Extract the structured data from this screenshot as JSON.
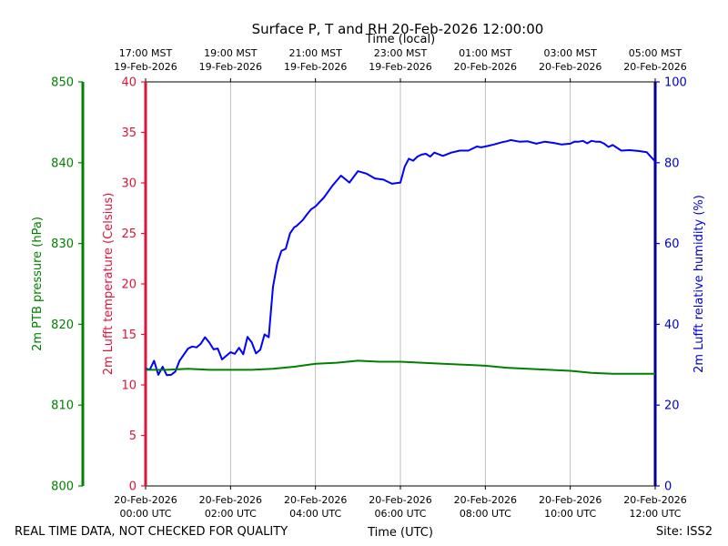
{
  "chart_data": {
    "type": "line",
    "title": "Surface P, T and RH 20-Feb-2026 12:00:00",
    "top_xlabel": "Time (local)",
    "xlabel": "Time (UTC)",
    "footer_left": "REAL TIME DATA, NOT CHECKED FOR QUALITY",
    "footer_right": "Site: ISS2",
    "x_range_hours": [
      0,
      12
    ],
    "grid": "vertical lines at bottom ticks",
    "bottom_ticks": [
      {
        "h": 0,
        "line1": "20-Feb-2026",
        "line2": "00:00 UTC"
      },
      {
        "h": 2,
        "line1": "20-Feb-2026",
        "line2": "02:00 UTC"
      },
      {
        "h": 4,
        "line1": "20-Feb-2026",
        "line2": "04:00 UTC"
      },
      {
        "h": 6,
        "line1": "20-Feb-2026",
        "line2": "06:00 UTC"
      },
      {
        "h": 8,
        "line1": "20-Feb-2026",
        "line2": "08:00 UTC"
      },
      {
        "h": 10,
        "line1": "20-Feb-2026",
        "line2": "10:00 UTC"
      },
      {
        "h": 12,
        "line1": "20-Feb-2026",
        "line2": "12:00 UTC"
      }
    ],
    "top_ticks": [
      {
        "h": 0,
        "line1": "17:00 MST",
        "line2": "19-Feb-2026"
      },
      {
        "h": 2,
        "line1": "19:00 MST",
        "line2": "19-Feb-2026"
      },
      {
        "h": 4,
        "line1": "21:00 MST",
        "line2": "19-Feb-2026"
      },
      {
        "h": 6,
        "line1": "23:00 MST",
        "line2": "19-Feb-2026"
      },
      {
        "h": 8,
        "line1": "01:00 MST",
        "line2": "20-Feb-2026"
      },
      {
        "h": 10,
        "line1": "03:00 MST",
        "line2": "20-Feb-2026"
      },
      {
        "h": 12,
        "line1": "05:00 MST",
        "line2": "20-Feb-2026"
      }
    ],
    "axes": {
      "pressure": {
        "label": "2m PTB pressure (hPa)",
        "color": "#008000",
        "range": [
          800,
          850
        ],
        "ticks": [
          800,
          810,
          820,
          830,
          840,
          850
        ]
      },
      "temperature": {
        "label": "2m Lufft temperature (Celsius)",
        "color": "#dc143c",
        "range": [
          0,
          40
        ],
        "ticks": [
          0,
          5,
          10,
          15,
          20,
          25,
          30,
          35,
          40
        ]
      },
      "humidity": {
        "label": "2m Lufft relative humidity (%)",
        "color": "#0000cd",
        "range": [
          0,
          100
        ],
        "ticks": [
          0,
          20,
          40,
          60,
          80,
          100
        ]
      }
    },
    "series": [
      {
        "axis": "humidity",
        "color": "#0000ff",
        "x": [
          0,
          0.1,
          0.2,
          0.3,
          0.4,
          0.5,
          0.6,
          0.7,
          0.8,
          0.9,
          1.0,
          1.1,
          1.2,
          1.3,
          1.4,
          1.5,
          1.6,
          1.7,
          1.8,
          1.9,
          2.0,
          2.1,
          2.2,
          2.3,
          2.4,
          2.5,
          2.6,
          2.7,
          2.8,
          2.9,
          3.0,
          3.1,
          3.2,
          3.3,
          3.4,
          3.5,
          3.55,
          3.6,
          3.7,
          3.8,
          3.9,
          4.0,
          4.2,
          4.4,
          4.6,
          4.8,
          5.0,
          5.2,
          5.4,
          5.6,
          5.8,
          6.0,
          6.1,
          6.2,
          6.3,
          6.4,
          6.5,
          6.6,
          6.7,
          6.8,
          7.0,
          7.2,
          7.4,
          7.6,
          7.8,
          7.9,
          8.0,
          8.2,
          8.4,
          8.5,
          8.6,
          8.8,
          9.0,
          9.2,
          9.4,
          9.6,
          9.8,
          10.0,
          10.1,
          10.2,
          10.3,
          10.4,
          10.5,
          10.6,
          10.7,
          10.8,
          10.9,
          11.0,
          11.2,
          11.4,
          11.6,
          11.8,
          12.0
        ],
        "values": [
          29,
          28.8,
          31,
          27.5,
          29.5,
          27.4,
          27.5,
          28.3,
          31,
          32.5,
          34,
          34.5,
          34.3,
          35.2,
          36.8,
          35.5,
          33.8,
          34,
          31.3,
          32.2,
          33.1,
          32.7,
          34.2,
          32.6,
          36.9,
          35.5,
          32.8,
          33.7,
          37.5,
          36.8,
          49.3,
          55.1,
          58.2,
          58.7,
          62.5,
          64,
          64.3,
          64.8,
          65.8,
          67.2,
          68.5,
          69.2,
          71.4,
          74.3,
          76.8,
          75.1,
          77.9,
          77.3,
          76.1,
          75.8,
          74.8,
          75.1,
          79,
          81,
          80.5,
          81.5,
          82,
          82.2,
          81.5,
          82.5,
          81.7,
          82.5,
          83,
          83,
          84,
          83.8,
          84,
          84.5,
          85.1,
          85.3,
          85.6,
          85.2,
          85.3,
          84.7,
          85.2,
          84.9,
          84.5,
          84.7,
          85.2,
          85.2,
          85.4,
          84.8,
          85.4,
          85.2,
          85.2,
          84.7,
          83.9,
          84.4,
          83,
          83.1,
          82.9,
          82.6,
          80.3
        ]
      },
      {
        "axis": "temperature",
        "color": "#008000",
        "x": [
          0,
          0.5,
          1,
          1.5,
          2,
          2.5,
          3,
          3.5,
          4,
          4.5,
          5,
          5.5,
          6,
          6.5,
          7,
          7.5,
          8,
          8.5,
          9,
          9.5,
          10,
          10.5,
          11,
          11.5,
          12
        ],
        "values": [
          11.5,
          11.5,
          11.6,
          11.5,
          11.5,
          11.5,
          11.6,
          11.8,
          12.1,
          12.2,
          12.4,
          12.3,
          12.3,
          12.2,
          12.1,
          12.0,
          11.9,
          11.7,
          11.6,
          11.5,
          11.4,
          11.2,
          11.1,
          11.1,
          11.1
        ]
      }
    ]
  }
}
